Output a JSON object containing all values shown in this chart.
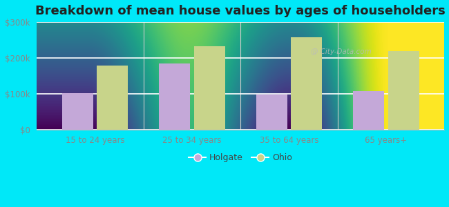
{
  "title": "Breakdown of mean house values by ages of householders",
  "categories": [
    "15 to 24 years",
    "25 to 34 years",
    "35 to 64 years",
    "65 years+"
  ],
  "holgate_values": [
    101000,
    185000,
    97000,
    107000
  ],
  "ohio_values": [
    178000,
    232000,
    258000,
    220000
  ],
  "holgate_color": "#c4a8d8",
  "ohio_color": "#c8d48a",
  "background_top": "#e0f0e8",
  "background_bottom": "#d0ecd0",
  "outer_background": "#00e8f8",
  "ylim": [
    0,
    300000
  ],
  "yticks": [
    0,
    100000,
    200000,
    300000
  ],
  "ytick_labels": [
    "$0",
    "$100k",
    "$200k",
    "$300k"
  ],
  "title_fontsize": 13,
  "legend_labels": [
    "Holgate",
    "Ohio"
  ],
  "bar_width": 0.32,
  "watermark": "@ City-Data.com"
}
